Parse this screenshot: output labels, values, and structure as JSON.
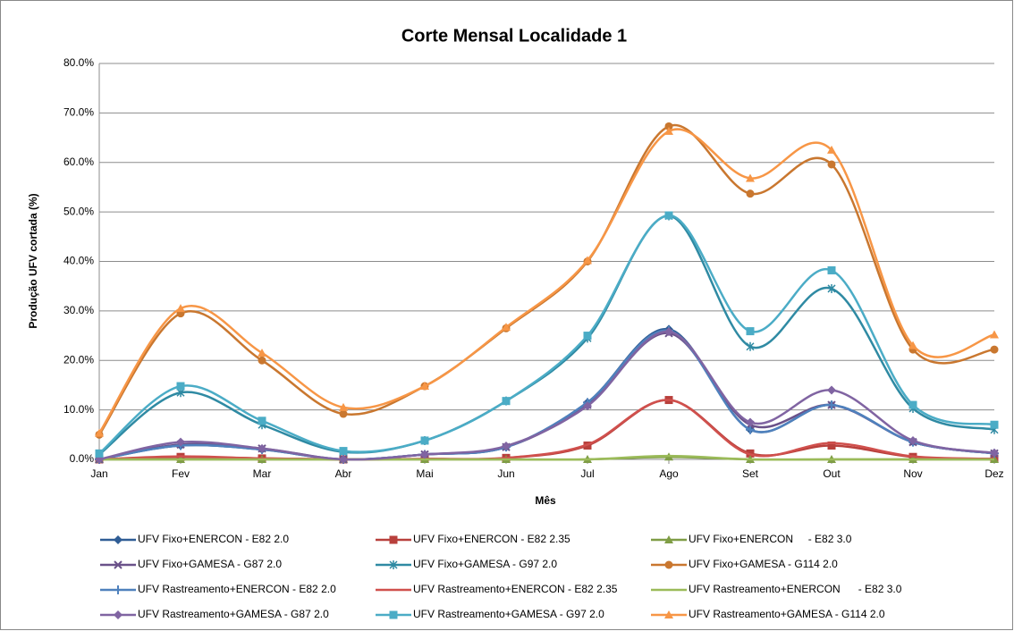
{
  "chart_data": {
    "type": "line",
    "title": "Corte Mensal Localidade 1",
    "x_label": "Mês",
    "y_label": "Produção UFV cortada (%)",
    "categories": [
      "Jan",
      "Fev",
      "Mar",
      "Abr",
      "Mai",
      "Jun",
      "Jul",
      "Ago",
      "Set",
      "Out",
      "Nov",
      "Dez"
    ],
    "ylim": [
      0,
      80
    ],
    "yticks": [
      {
        "value": 0,
        "label": "0.0%"
      },
      {
        "value": 10,
        "label": "10.0%"
      },
      {
        "value": 20,
        "label": "20.0%"
      },
      {
        "value": 30,
        "label": "30.0%"
      },
      {
        "value": 40,
        "label": "40.0%"
      },
      {
        "value": 50,
        "label": "50.0%"
      },
      {
        "value": 60,
        "label": "60.0%"
      },
      {
        "value": 70,
        "label": "70.0%"
      },
      {
        "value": 80,
        "label": "80.0%"
      }
    ],
    "grid": true,
    "smooth": true,
    "legend": "bottom",
    "series": [
      {
        "name": "UFV Fixo+ENERCON - E82 2.0",
        "color": "#2f5d95",
        "marker": "diamond",
        "values": [
          0,
          2.8,
          2,
          0,
          1,
          2.5,
          11.5,
          26.3,
          6,
          11,
          3.5,
          1.2
        ]
      },
      {
        "name": "UFV Fixo+ENERCON - E82 2.35",
        "color": "#b8403c",
        "marker": "square",
        "values": [
          0,
          0.5,
          0.2,
          0,
          0.1,
          0.3,
          2.8,
          12,
          1.2,
          2.8,
          0.5,
          0.1
        ]
      },
      {
        "name": "UFV Fixo+ENERCON     - E82 3.0",
        "color": "#7f9d45",
        "marker": "triangle",
        "values": [
          0,
          0,
          0,
          0,
          0,
          0,
          0,
          0.5,
          0,
          0,
          0,
          0
        ]
      },
      {
        "name": "UFV Fixo+GAMESA - G87 2.0",
        "color": "#6a5189",
        "marker": "x",
        "values": [
          0,
          3,
          2.2,
          0,
          1,
          2.5,
          11,
          25.5,
          7,
          11,
          3.5,
          1.2
        ]
      },
      {
        "name": "UFV Fixo+GAMESA - G97 2.0",
        "color": "#2f8aa3",
        "marker": "star",
        "values": [
          1,
          13.5,
          7,
          1.5,
          3.8,
          11.8,
          24.5,
          49.2,
          22.8,
          34.5,
          10.3,
          6
        ]
      },
      {
        "name": "UFV Fixo+GAMESA - G114 2.0",
        "color": "#c9772f",
        "marker": "circle",
        "values": [
          5,
          29.5,
          20,
          9.2,
          14.8,
          26.5,
          40,
          67.3,
          53.7,
          59.6,
          22.2,
          22.2
        ]
      },
      {
        "name": "UFV Rastreamento+ENERCON - E82 2.0",
        "color": "#4f81bd",
        "marker": "plus",
        "values": [
          0,
          2.8,
          2,
          0,
          1,
          2.5,
          11.5,
          26,
          6,
          11,
          3.5,
          1.2
        ]
      },
      {
        "name": "UFV Rastreamento+ENERCON - E82 2.35",
        "color": "#d0504d",
        "marker": "none",
        "values": [
          0,
          0.6,
          0.2,
          0,
          0.1,
          0.3,
          3,
          12,
          1,
          3.3,
          0.6,
          0.1
        ]
      },
      {
        "name": "UFV Rastreamento+ENERCON      - E82 3.0",
        "color": "#9bbb59",
        "marker": "none",
        "values": [
          0,
          0,
          0,
          0,
          0,
          0,
          0,
          0.7,
          0,
          0,
          0,
          0
        ]
      },
      {
        "name": "UFV Rastreamento+GAMESA - G87 2.0",
        "color": "#8064a2",
        "marker": "diamond",
        "values": [
          0,
          3.5,
          2.2,
          0,
          1,
          2.7,
          10.8,
          25.8,
          7.5,
          14,
          3.8,
          1.3
        ]
      },
      {
        "name": "UFV Rastreamento+GAMESA - G97 2.0",
        "color": "#4bacc6",
        "marker": "square",
        "values": [
          1.2,
          14.8,
          7.8,
          1.7,
          3.8,
          11.8,
          25,
          49.3,
          25.9,
          38.2,
          11,
          7
        ]
      },
      {
        "name": "UFV Rastreamento+GAMESA - G114 2.0",
        "color": "#f79646",
        "marker": "triangle",
        "values": [
          5.3,
          30.5,
          21.5,
          10.5,
          14.8,
          26.7,
          40.2,
          66.3,
          56.8,
          62.5,
          23,
          25.2
        ]
      }
    ]
  }
}
